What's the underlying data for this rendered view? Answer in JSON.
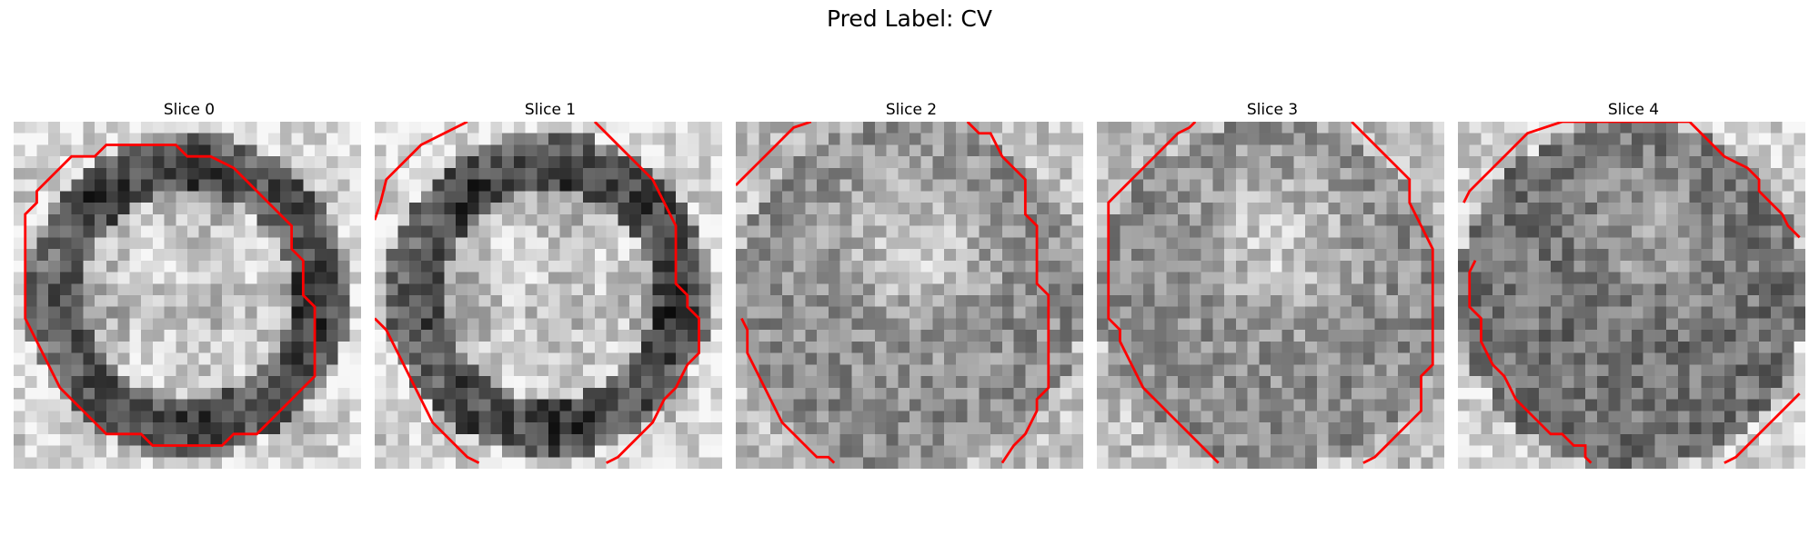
{
  "figure": {
    "title": "Pred Label: CV"
  },
  "slices": [
    {
      "label": "Slice 0",
      "seed": 11,
      "profile": "ring-bright"
    },
    {
      "label": "Slice 1",
      "seed": 23,
      "profile": "ring-bright"
    },
    {
      "label": "Slice 2",
      "seed": 37,
      "profile": "speckle"
    },
    {
      "label": "Slice 3",
      "seed": 53,
      "profile": "speckle"
    },
    {
      "label": "Slice 4",
      "seed": 71,
      "profile": "dark-speckle"
    }
  ],
  "colors": {
    "contour": "#ff0000",
    "background": "#ffffff"
  }
}
